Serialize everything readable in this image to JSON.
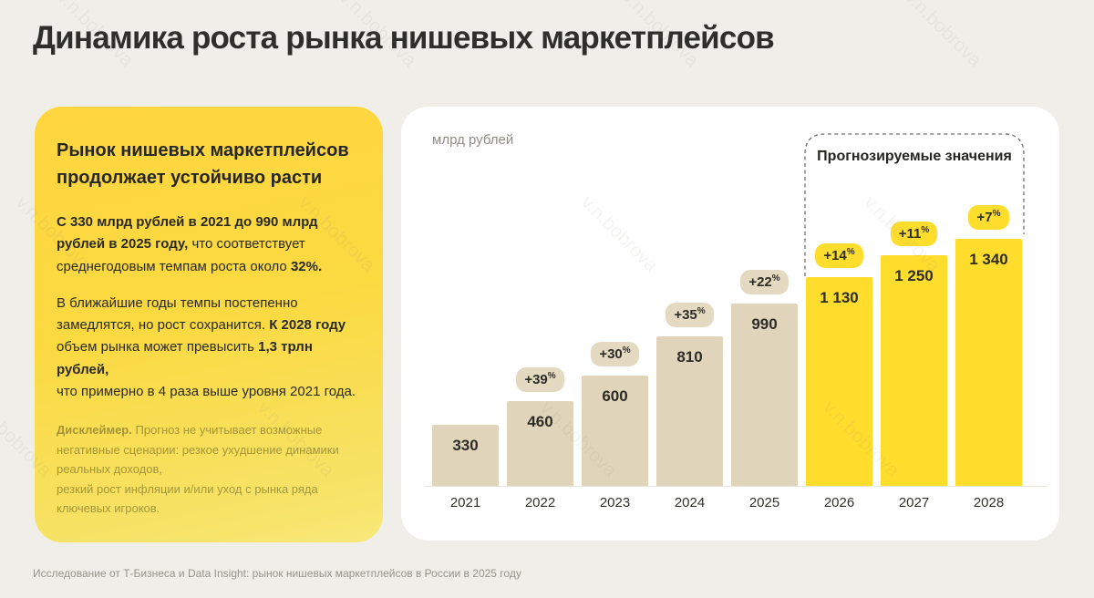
{
  "page": {
    "title": "Динамика роста рынка нишевых маркетплейсов",
    "footer": "Исследование от Т-Бизнеса и Data Insight: рынок нишевых маркетплейсов в России в 2025 году",
    "watermark": "v.n.bobrova"
  },
  "info_card": {
    "heading": "Рынок нишевых маркетплейсов продолжает устойчиво расти",
    "paragraphs": [
      [
        {
          "text": "С 330 млрд рублей в 2021 до 990 млрд рублей в 2025 году,",
          "bold": true
        },
        {
          "text": " что соответствует среднегодовым темпам роста около ",
          "bold": false
        },
        {
          "text": "32%.",
          "bold": true
        }
      ],
      [
        {
          "text": "В ближайшие годы темпы постепенно замедлятся, но рост сохранится. ",
          "bold": false
        },
        {
          "text": "К 2028 году",
          "bold": true
        },
        {
          "text": " объем рынка может превысить ",
          "bold": false
        },
        {
          "text": "1,3 трлн рублей,",
          "bold": true
        },
        {
          "text": "\nчто примерно в 4 раза выше уровня 2021 года.",
          "bold": false
        }
      ]
    ],
    "disclaimer": [
      {
        "text": "Дисклеймер.",
        "bold": true
      },
      {
        "text": " Прогноз не учитывает возможные негативные сценарии: резкое ухудшение динамики реальных доходов,\nрезкий рост инфляции и/или уход с рынка ряда\nключевых игроков.",
        "bold": false
      }
    ]
  },
  "chart_data": {
    "type": "bar",
    "title": "Динамика роста рынка нишевых маркетплейсов",
    "unit_label": "млрд рублей",
    "forecast_label": "Прогнозируемые значения",
    "categories": [
      "2021",
      "2022",
      "2023",
      "2024",
      "2025",
      "2026",
      "2027",
      "2028"
    ],
    "values": [
      330,
      460,
      600,
      810,
      990,
      1130,
      1250,
      1340
    ],
    "value_labels": [
      "330",
      "460",
      "600",
      "810",
      "990",
      "1 130",
      "1 250",
      "1 340"
    ],
    "growth_badges": [
      null,
      "+39",
      "+30",
      "+35",
      "+22",
      "+14",
      "+11",
      "+7"
    ],
    "badge_unit": "%",
    "forecast_from_index": 5,
    "ylim": [
      0,
      1400
    ],
    "grid": false,
    "legend_position": "none",
    "colors": {
      "historical_bar": "#E0D4BA",
      "forecast_bar": "#FFDD2D",
      "historical_badge": "#E4D9C1",
      "forecast_badge": "#FFDD2D",
      "value_text": "#2E2C26",
      "axis_line": "#E9E6DD",
      "card_bg": "#FFFFFF",
      "page_bg": "#EFEEE8",
      "accent_yellow": "#FFDD2D"
    }
  }
}
